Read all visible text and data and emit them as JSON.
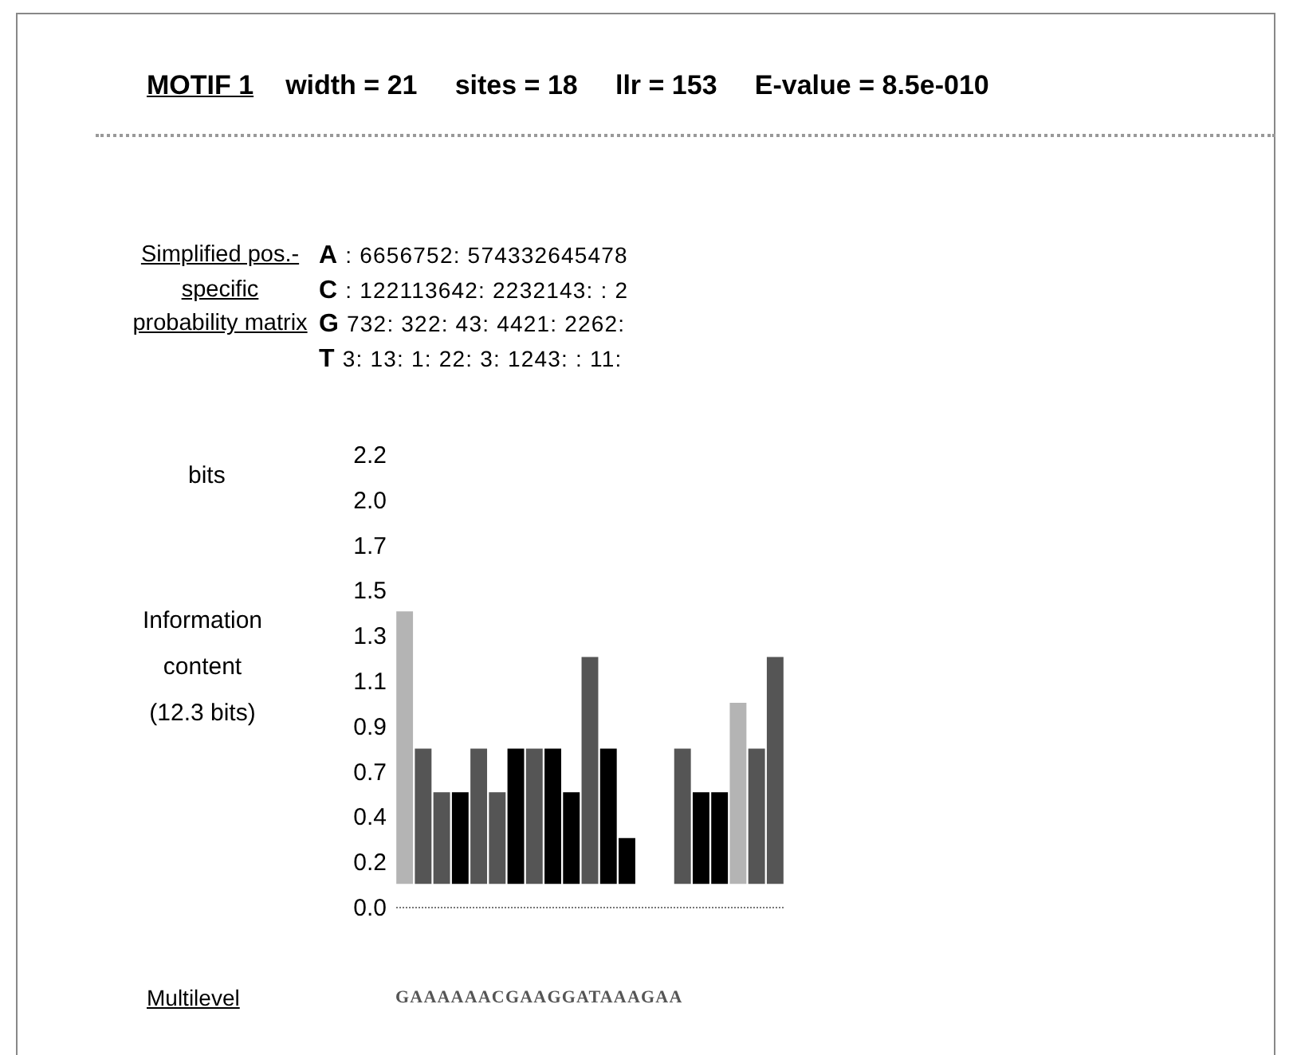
{
  "chart_data": {
    "type": "bar",
    "title": "MOTIF 1",
    "subtitle": "width = 21     sites = 18     llr = 153     E-value = 8.5e-010",
    "ylabel": "Information content (12.3 bits)",
    "annotations": [
      "Simplified pos.-specific probability matrix",
      "A : 6656752: 574332645478",
      "C : 122113642: 2232143: : 2",
      "G 732: 322: 43: 4421: 2262:",
      "T 3: 13: 1: 22: 3: 1243: : 11:",
      "bits",
      "Multilevel",
      "GAAAAAACGAAGGATAAAGAA"
    ],
    "categories": [
      null,
      null,
      null,
      null,
      null,
      null,
      null,
      null,
      null,
      null,
      null,
      null,
      null,
      null,
      null,
      null,
      null,
      null,
      null,
      null,
      null
    ],
    "values": [
      1.31,
      0.65,
      0.44,
      0.44,
      0.65,
      0.44,
      0.65,
      0.65,
      0.65,
      0.44,
      1.09,
      0.65,
      0.22,
      null,
      null,
      0.65,
      0.44,
      0.44,
      0.87,
      0.65,
      1.09
    ],
    "base": [
      0.11,
      0.11,
      0.11,
      0.11,
      0.11,
      0.11,
      0.11,
      0.11,
      0.11,
      0.11,
      0.11,
      0.11,
      0.11,
      null,
      null,
      0.11,
      0.11,
      0.11,
      0.11,
      0.11,
      0.11
    ],
    "colors": [
      "#b4b4b4",
      "#555555",
      "#555555",
      "#000000",
      "#555555",
      "#555555",
      "#000000",
      "#555555",
      "#000000",
      "#000000",
      "#555555",
      "#000000",
      "#000000",
      null,
      null,
      "#555555",
      "#000000",
      "#000000",
      "#b4b4b4",
      "#555555",
      "#555555"
    ],
    "ylim": [
      0,
      2.175
    ],
    "yticks": [
      {
        "value": 0,
        "label": "0.0"
      },
      {
        "value": 0.2175,
        "label": "0.2"
      },
      {
        "value": 0.435,
        "label": "0.4"
      },
      {
        "value": 0.6525,
        "label": "0.7"
      },
      {
        "value": 0.87,
        "label": "0.9"
      },
      {
        "value": 1.0875,
        "label": "1.1"
      },
      {
        "value": 1.305,
        "label": "1.3"
      },
      {
        "value": 1.5225,
        "label": "1.5"
      },
      {
        "value": 1.74,
        "label": "1.7"
      },
      {
        "value": 1.9575,
        "label": "2.0"
      },
      {
        "value": 2.175,
        "label": "2.2"
      }
    ],
    "grid": false
  }
}
